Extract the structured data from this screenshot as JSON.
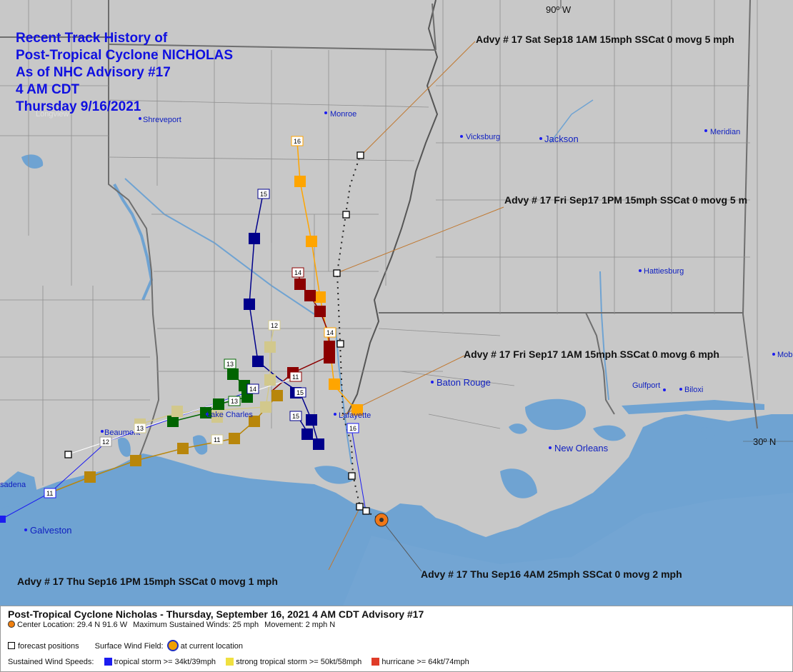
{
  "map": {
    "title_lines": [
      "Recent Track History of",
      "Post-Tropical Cyclone NICHOLAS",
      "As of NHC Advisory #17",
      "4 AM CDT",
      "Thursday 9/16/2021"
    ],
    "lon_label": "90º W",
    "lat_label": "30º N",
    "cities": {
      "longview": "Longview",
      "shreveport": "Shreveport",
      "monroe": "Monroe",
      "vicksburg": "Vicksburg",
      "jackson": "Jackson",
      "meridian": "Meridian",
      "hattiesburg": "Hattiesburg",
      "baton_rouge": "Baton Rouge",
      "lafayette": "Lafayette",
      "lake_charles": "Lake Charles",
      "beaumont": "Beaumont",
      "new_orleans": "New Orleans",
      "gulfport": "Gulfport",
      "biloxi": "Biloxi",
      "mobile": "Mob",
      "galveston": "Galveston",
      "pasadena": "sadena"
    },
    "callouts": {
      "sat18": "Advy # 17 Sat Sep18 1AM  15mph SSCat 0 movg 5 mph",
      "fri17_1pm": "Advy # 17 Fri Sep17 1PM  15mph SSCat 0 movg 5 m",
      "fri17_1am": "Advy # 17 Fri Sep17 1AM  15mph SSCat 0 movg 6 mph",
      "thu16_1pm": "Advy # 17 Thu Sep16 1PM  15mph SSCat 0 movg 1 mph",
      "thu16_4am": "Advy # 17 Thu Sep16 4AM  25mph SSCat 0 movg 2 mph"
    },
    "day_labels": {
      "orange_16": "16",
      "orange_14": "14",
      "darkred_14": "14",
      "olive_12": "12",
      "navy_15a": "15",
      "navy_15b": "15",
      "navy_15c": "15",
      "navy_14": "14",
      "green_13a": "13",
      "green_13b": "13",
      "brown_11a": "11",
      "brown_11b": "11",
      "brown_11c": "11",
      "beaumont_13": "13",
      "beaumont_12": "12",
      "lafayette_16": "16"
    },
    "colors": {
      "land": "#c8c8c8",
      "water": "#6fa3d2",
      "tropical_storm": "#1c1cf0",
      "strong_tropical_storm": "#f0e040",
      "hurricane": "#e03c28",
      "orange_track": "#ffa500",
      "darkred_track": "#8b0000",
      "navy_track": "#00008b",
      "green_track": "#006400",
      "olive_track": "#d2c88c",
      "brown_track": "#b8860b"
    }
  },
  "legend": {
    "title": "Post-Tropical Cyclone Nicholas  -  Thursday, September 16, 2021  4 AM CDT   Advisory #17",
    "center_location": "Center Location: 29.4 N  91.6 W",
    "max_winds": "Maximum Sustained Winds: 25 mph",
    "movement": "Movement: 2 mph N",
    "forecast_positions": "forecast positions",
    "surface_wind_field": "Surface Wind Field:",
    "at_current_location": "at current location",
    "sustained_wind_speeds": "Sustained Wind Speeds:",
    "tropical_storm": "tropical storm >= 34kt/39mph",
    "strong_tropical_storm": "strong tropical storm >= 50kt/58mph",
    "hurricane": "hurricane >= 64kt/74mph"
  }
}
